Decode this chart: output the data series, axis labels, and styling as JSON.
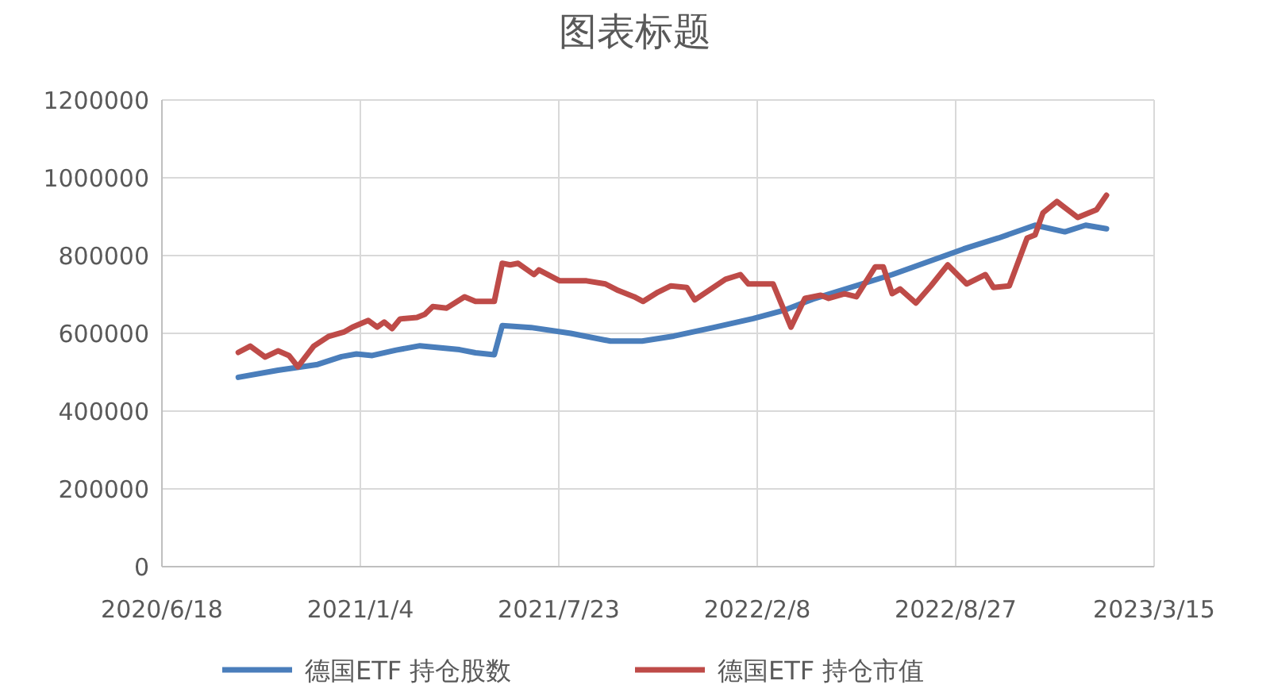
{
  "chart_data": {
    "type": "line",
    "title": "图表标题",
    "legend": "bottom",
    "grid": true,
    "line_style": "solid",
    "xlim": [
      "2020-06-18",
      "2023-03-15"
    ],
    "xticks": [
      {
        "value": "2020-06-18",
        "label": "2020/6/18"
      },
      {
        "value": "2021-01-04",
        "label": "2021/1/4"
      },
      {
        "value": "2021-07-23",
        "label": "2021/7/23"
      },
      {
        "value": "2022-02-08",
        "label": "2022/2/8"
      },
      {
        "value": "2022-08-27",
        "label": "2022/8/27"
      },
      {
        "value": "2023-03-15",
        "label": "2023/3/15"
      }
    ],
    "ylim": [
      0,
      1200000
    ],
    "yticks": [
      0,
      200000,
      400000,
      600000,
      800000,
      1000000,
      1200000
    ],
    "series": [
      {
        "name": "德国ETF 持仓股数",
        "color": "#4a7ebb",
        "x": [
          "2020-09-03",
          "2020-10-13",
          "2020-11-22",
          "2020-12-16",
          "2020-12-31",
          "2021-01-16",
          "2021-02-09",
          "2021-03-05",
          "2021-04-14",
          "2021-04-30",
          "2021-05-19",
          "2021-05-27",
          "2021-06-25",
          "2021-08-04",
          "2021-09-13",
          "2021-10-15",
          "2021-11-16",
          "2021-12-26",
          "2022-02-04",
          "2022-03-08",
          "2022-04-05",
          "2022-06-24",
          "2022-09-04",
          "2022-10-09",
          "2022-11-15",
          "2022-12-15",
          "2023-01-05",
          "2023-01-26"
        ],
        "values": [
          487000,
          505000,
          520000,
          540000,
          547000,
          543000,
          557000,
          568000,
          558000,
          550000,
          545000,
          620000,
          615000,
          600000,
          580000,
          580000,
          593000,
          615000,
          638000,
          660000,
          688000,
          751000,
          817000,
          845000,
          878000,
          861000,
          878000,
          869000
        ]
      },
      {
        "name": "德国ETF 持仓市值",
        "color": "#be4b48",
        "x": [
          "2020-09-03",
          "2020-09-15",
          "2020-09-30",
          "2020-10-13",
          "2020-10-24",
          "2020-11-02",
          "2020-11-18",
          "2020-12-03",
          "2020-12-19",
          "2020-12-27",
          "2021-01-12",
          "2021-01-21",
          "2021-01-28",
          "2021-02-05",
          "2021-02-13",
          "2021-03-02",
          "2021-03-10",
          "2021-03-18",
          "2021-04-01",
          "2021-04-19",
          "2021-04-30",
          "2021-05-19",
          "2021-05-27",
          "2021-06-04",
          "2021-06-12",
          "2021-06-28",
          "2021-07-03",
          "2021-07-24",
          "2021-08-20",
          "2021-09-08",
          "2021-09-21",
          "2021-10-07",
          "2021-10-16",
          "2021-10-31",
          "2021-11-13",
          "2021-11-29",
          "2021-12-07",
          "2021-12-21",
          "2022-01-07",
          "2022-01-22",
          "2022-01-30",
          "2022-02-24",
          "2022-03-14",
          "2022-03-28",
          "2022-04-13",
          "2022-04-21",
          "2022-05-07",
          "2022-05-19",
          "2022-06-07",
          "2022-06-15",
          "2022-06-24",
          "2022-07-02",
          "2022-07-18",
          "2022-08-02",
          "2022-08-19",
          "2022-09-07",
          "2022-09-26",
          "2022-10-04",
          "2022-10-20",
          "2022-11-07",
          "2022-11-15",
          "2022-11-23",
          "2022-12-07",
          "2022-12-28",
          "2023-01-16",
          "2023-01-26"
        ],
        "values": [
          551000,
          567000,
          539000,
          555000,
          543000,
          514000,
          567000,
          592000,
          604000,
          616000,
          633000,
          616000,
          629000,
          612000,
          637000,
          641000,
          649000,
          669000,
          665000,
          694000,
          682000,
          682000,
          780000,
          776000,
          780000,
          751000,
          763000,
          735000,
          735000,
          727000,
          710000,
          694000,
          682000,
          706000,
          722000,
          718000,
          686000,
          710000,
          739000,
          751000,
          727000,
          727000,
          616000,
          690000,
          698000,
          690000,
          702000,
          694000,
          771000,
          771000,
          702000,
          714000,
          678000,
          722000,
          776000,
          727000,
          751000,
          718000,
          722000,
          845000,
          853000,
          910000,
          939000,
          898000,
          918000,
          955000
        ]
      }
    ]
  }
}
